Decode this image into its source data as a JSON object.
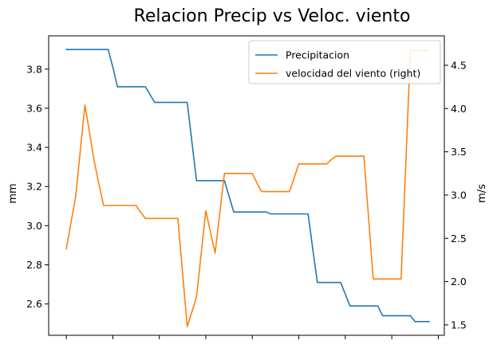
{
  "chart_data": {
    "type": "line",
    "title": "Relacion Precip vs Veloc. viento",
    "xlabel": "",
    "ylabel": "mm",
    "ylabel_right": "m/s",
    "x_ticks_labeled": false,
    "x": [
      0,
      1,
      2,
      3,
      4,
      5,
      6,
      7,
      8,
      9,
      10,
      11,
      12,
      13,
      14,
      15,
      16,
      17,
      18,
      19,
      20,
      21,
      22,
      23,
      24,
      25,
      26,
      27,
      28,
      29,
      30,
      31,
      32,
      33,
      34,
      35,
      36,
      37,
      38,
      39,
      40,
      41,
      42,
      43,
      44,
      45,
      46,
      47,
      48,
      49,
      50,
      51,
      52,
      53,
      54,
      55,
      56,
      57,
      58,
      59,
      60,
      61,
      62,
      63,
      64,
      65,
      66,
      67,
      68,
      69,
      70,
      71,
      72,
      73,
      74,
      75,
      76,
      77,
      78
    ],
    "ylim": [
      2.44,
      3.97
    ],
    "ylim_right": [
      1.38,
      4.84
    ],
    "yticks": [
      2.6,
      2.8,
      3.0,
      3.2,
      3.4,
      3.6,
      3.8
    ],
    "yticks_right": [
      1.5,
      2.0,
      2.5,
      3.0,
      3.5,
      4.0,
      4.5
    ],
    "legend_position": "upper right",
    "series": [
      {
        "name": "Precipitacion",
        "axis": "left",
        "color": "#1f77b4",
        "values": [
          3.9,
          3.9,
          3.9,
          3.9,
          3.9,
          3.9,
          3.9,
          3.9,
          3.9,
          3.9,
          3.81,
          3.71,
          3.71,
          3.71,
          3.71,
          3.71,
          3.71,
          3.71,
          3.67,
          3.63,
          3.63,
          3.63,
          3.63,
          3.63,
          3.63,
          3.63,
          3.63,
          3.43,
          3.23,
          3.23,
          3.23,
          3.23,
          3.23,
          3.23,
          3.23,
          3.15,
          3.07,
          3.07,
          3.07,
          3.07,
          3.07,
          3.07,
          3.07,
          3.07,
          3.06,
          3.06,
          3.06,
          3.06,
          3.06,
          3.06,
          3.06,
          3.06,
          3.06,
          2.88,
          2.71,
          2.71,
          2.71,
          2.71,
          2.71,
          2.71,
          2.65,
          2.59,
          2.59,
          2.59,
          2.59,
          2.59,
          2.59,
          2.59,
          2.54,
          2.54,
          2.54,
          2.54,
          2.54,
          2.54,
          2.54,
          2.51,
          2.51,
          2.51,
          2.51
        ]
      },
      {
        "name": "velocidad del viento (right)",
        "axis": "right",
        "color": "#ff7f0e",
        "values": [
          2.38,
          2.68,
          2.98,
          3.51,
          4.04,
          3.72,
          3.39,
          3.13,
          2.88,
          2.88,
          2.88,
          2.88,
          2.88,
          2.88,
          2.88,
          2.88,
          2.8,
          2.73,
          2.73,
          2.73,
          2.73,
          2.73,
          2.73,
          2.73,
          2.73,
          2.1,
          1.48,
          1.65,
          1.82,
          2.32,
          2.82,
          2.57,
          2.33,
          2.79,
          3.25,
          3.25,
          3.25,
          3.25,
          3.25,
          3.25,
          3.25,
          3.14,
          3.04,
          3.04,
          3.04,
          3.04,
          3.04,
          3.04,
          3.04,
          3.2,
          3.36,
          3.36,
          3.36,
          3.36,
          3.36,
          3.36,
          3.36,
          3.41,
          3.45,
          3.45,
          3.45,
          3.45,
          3.45,
          3.45,
          3.45,
          2.74,
          2.03,
          2.03,
          2.03,
          2.03,
          2.03,
          2.03,
          2.03,
          3.35,
          4.67,
          4.67,
          4.67,
          4.67,
          4.67
        ]
      }
    ]
  }
}
